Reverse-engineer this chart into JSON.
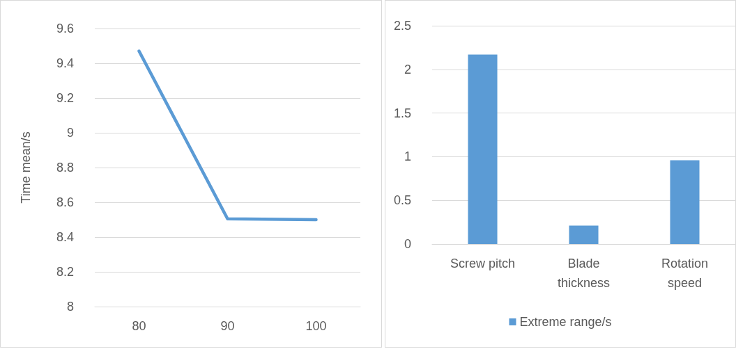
{
  "chart_data": [
    {
      "type": "line",
      "ylabel": "Time mean/s",
      "categories": [
        "80",
        "90",
        "100"
      ],
      "series": [
        {
          "color": "#5b9bd5",
          "values": [
            9.47,
            8.505,
            8.5
          ]
        }
      ],
      "ylim": [
        8,
        9.6
      ],
      "yticks": [
        8,
        8.2,
        8.4,
        8.6,
        8.8,
        9,
        9.2,
        9.4,
        9.6
      ],
      "grid": "y",
      "marker": "none",
      "legend": false
    },
    {
      "type": "bar",
      "categories": [
        "Screw pitch",
        "Blade\nthickness",
        "Rotation\nspeed"
      ],
      "series": [
        {
          "name": "Extreme range/s",
          "color": "#5b9bd5",
          "values": [
            2.17,
            0.21,
            0.96
          ]
        }
      ],
      "ylim": [
        0,
        2.5
      ],
      "yticks": [
        0,
        0.5,
        1,
        1.5,
        2,
        2.5
      ],
      "grid": "y",
      "legend": "bottom"
    }
  ]
}
